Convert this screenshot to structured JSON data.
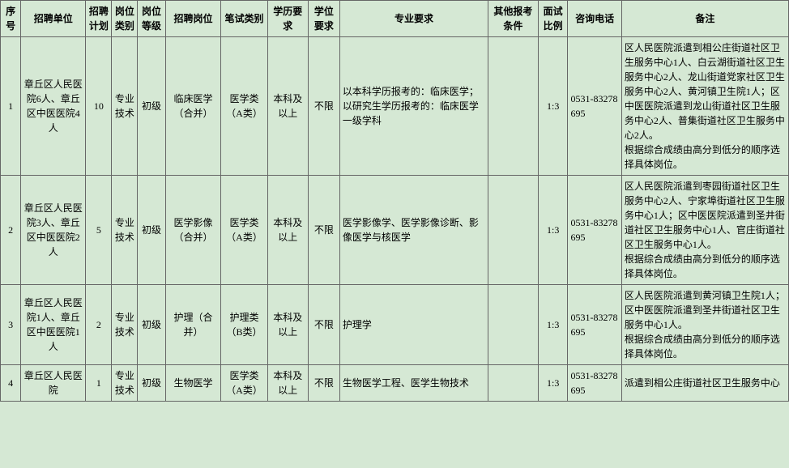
{
  "colors": {
    "background": "#d5e8d4",
    "border": "#666666",
    "text": "#000000"
  },
  "typography": {
    "font_family": "SimSun",
    "font_size_pt": 9,
    "line_height": 1.5
  },
  "table": {
    "headers": {
      "seq": "序号",
      "unit": "招聘单位",
      "plan": "招聘计划",
      "cat": "岗位类别",
      "level": "岗位等级",
      "post": "招聘岗位",
      "exam": "笔试类别",
      "edu": "学历要求",
      "degree": "学位要求",
      "major": "专业要求",
      "other": "其他报考条件",
      "ratio": "面试比例",
      "phone": "咨询电话",
      "remark": "备注"
    },
    "rows": [
      {
        "seq": "1",
        "unit": "章丘区人民医院6人、章丘区中医医院4人",
        "plan": "10",
        "cat": "专业技术",
        "level": "初级",
        "post": "临床医学（合并）",
        "exam": "医学类（A类）",
        "edu": "本科及以上",
        "degree": "不限",
        "major": "以本科学历报考的：临床医学；\n以研究生学历报考的：临床医学一级学科",
        "other": "",
        "ratio": "1:3",
        "phone": "0531-83278695",
        "remark": "区人民医院派遣到相公庄街道社区卫生服务中心1人、白云湖街道社区卫生服务中心2人、龙山街道党家社区卫生服务中心2人、黄河镇卫生院1人；区中医医院派遣到龙山街道社区卫生服务中心2人、普集街道社区卫生服务中心2人。\n根据综合成绩由高分到低分的顺序选择具体岗位。"
      },
      {
        "seq": "2",
        "unit": "章丘区人民医院3人、章丘区中医医院2人",
        "plan": "5",
        "cat": "专业技术",
        "level": "初级",
        "post": "医学影像（合并）",
        "exam": "医学类（A类）",
        "edu": "本科及以上",
        "degree": "不限",
        "major": "医学影像学、医学影像诊断、影像医学与核医学",
        "other": "",
        "ratio": "1:3",
        "phone": "0531-83278695",
        "remark": "区人民医院派遣到枣园街道社区卫生服务中心2人、宁家埠街道社区卫生服务中心1人；区中医医院派遣到圣井街道社区卫生服务中心1人、官庄街道社区卫生服务中心1人。\n根据综合成绩由高分到低分的顺序选择具体岗位。"
      },
      {
        "seq": "3",
        "unit": "章丘区人民医院1人、章丘区中医医院1人",
        "plan": "2",
        "cat": "专业技术",
        "level": "初级",
        "post": "护理（合并）",
        "exam": "护理类（B类）",
        "edu": "本科及以上",
        "degree": "不限",
        "major": "护理学",
        "other": "",
        "ratio": "1:3",
        "phone": "0531-83278695",
        "remark": "区人民医院派遣到黄河镇卫生院1人；区中医医院派遣到圣井街道社区卫生服务中心1人。\n根据综合成绩由高分到低分的顺序选择具体岗位。"
      },
      {
        "seq": "4",
        "unit": "章丘区人民医院",
        "plan": "1",
        "cat": "专业技术",
        "level": "初级",
        "post": "生物医学",
        "exam": "医学类（A类）",
        "edu": "本科及以上",
        "degree": "不限",
        "major": "生物医学工程、医学生物技术",
        "other": "",
        "ratio": "1:3",
        "phone": "0531-83278695",
        "remark": "派遣到相公庄街道社区卫生服务中心"
      }
    ]
  }
}
